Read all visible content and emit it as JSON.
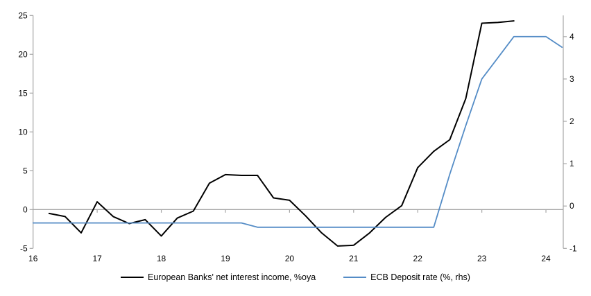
{
  "legend": {
    "items": [
      {
        "label": "European Banks' net interest income, %oya",
        "color": "#000000"
      },
      {
        "label": "ECB Deposit rate (%, rhs)",
        "color": "#548cc6"
      }
    ]
  },
  "colors": {
    "axis": "#a6a6a6",
    "zero_line": "#a6a6a6",
    "tick_text": "#000000",
    "nii_line": "#000000",
    "deposit_line": "#548cc6"
  },
  "chart_data": {
    "type": "line",
    "title": "",
    "xlabel": "",
    "ylabel_left": "",
    "ylabel_right": "",
    "grid": false,
    "zero_line": true,
    "legend_position": "bottom",
    "x_range": [
      16,
      24.27
    ],
    "x_ticks": [
      16,
      17,
      18,
      19,
      20,
      21,
      22,
      23,
      24
    ],
    "left_axis": {
      "range": [
        -5,
        25
      ],
      "ticks": [
        -5,
        0,
        5,
        10,
        15,
        20,
        25
      ]
    },
    "right_axis": {
      "range": [
        -1,
        4.5
      ],
      "ticks": [
        -1,
        0,
        1,
        2,
        3,
        4
      ]
    },
    "series": [
      {
        "name": "European Banks' net interest income, %oya",
        "axis": "left",
        "color": "#000000",
        "width": 2,
        "x": [
          16.25,
          16.5,
          16.75,
          17.0,
          17.25,
          17.5,
          17.75,
          18.0,
          18.25,
          18.5,
          18.75,
          19.0,
          19.25,
          19.5,
          19.75,
          20.0,
          20.25,
          20.5,
          20.75,
          21.0,
          21.25,
          21.5,
          21.75,
          22.0,
          22.25,
          22.5,
          22.75,
          23.0,
          23.25,
          23.5
        ],
        "values": [
          -0.5,
          -0.9,
          -3.0,
          1.0,
          -0.9,
          -1.8,
          -1.3,
          -3.4,
          -1.1,
          -0.2,
          3.4,
          4.5,
          4.4,
          4.4,
          1.5,
          1.2,
          -0.8,
          -3.0,
          -4.7,
          -4.6,
          -3.0,
          -1.0,
          0.5,
          5.4,
          7.5,
          9.0,
          14.3,
          24.0,
          24.1,
          24.3
        ]
      },
      {
        "name": "ECB Deposit rate (%, rhs)",
        "axis": "right",
        "color": "#548cc6",
        "width": 1.8,
        "x": [
          16.0,
          16.25,
          16.5,
          16.75,
          17.0,
          17.25,
          17.5,
          17.75,
          18.0,
          18.25,
          18.5,
          18.75,
          19.0,
          19.25,
          19.5,
          19.75,
          20.0,
          20.25,
          20.5,
          20.75,
          21.0,
          21.25,
          21.5,
          21.75,
          22.0,
          22.25,
          22.5,
          22.75,
          23.0,
          23.25,
          23.5,
          23.75,
          24.0,
          24.25
        ],
        "values": [
          -0.4,
          -0.4,
          -0.4,
          -0.4,
          -0.4,
          -0.4,
          -0.4,
          -0.4,
          -0.4,
          -0.4,
          -0.4,
          -0.4,
          -0.4,
          -0.4,
          -0.5,
          -0.5,
          -0.5,
          -0.5,
          -0.5,
          -0.5,
          -0.5,
          -0.5,
          -0.5,
          -0.5,
          -0.5,
          -0.5,
          0.75,
          1.9,
          3.0,
          3.5,
          4.0,
          4.0,
          4.0,
          3.75
        ]
      }
    ]
  }
}
